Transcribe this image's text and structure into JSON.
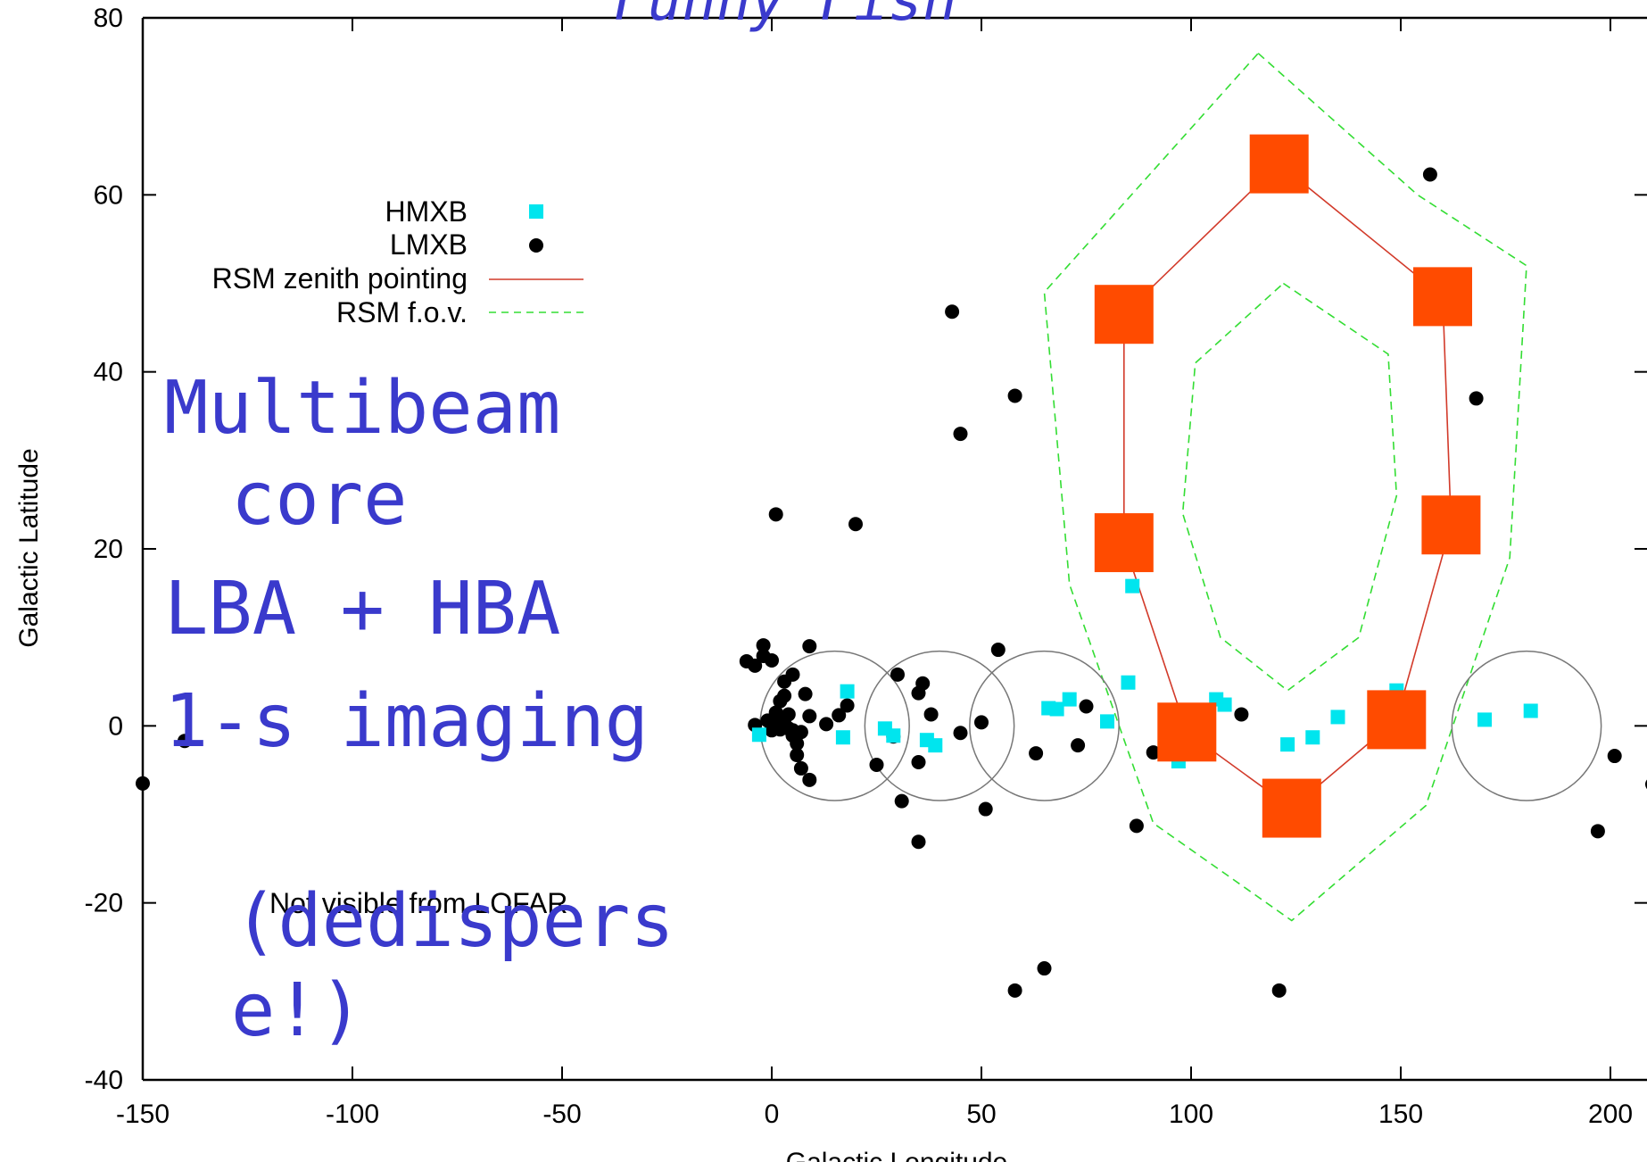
{
  "chart_data": {
    "type": "scatter",
    "title": "Funny Fish",
    "xlabel": "Galactic Longitude",
    "ylabel": "Galactic Latitude",
    "xlim": [
      -150,
      210
    ],
    "ylim": [
      -40,
      80
    ],
    "x_ticks": [
      -150,
      -100,
      -50,
      0,
      50,
      100,
      150,
      200
    ],
    "y_ticks": [
      -40,
      -20,
      0,
      20,
      40,
      60,
      80
    ],
    "grid": false,
    "legend_position": "top-left",
    "annotation": "Not visible from LOFAR",
    "series": [
      {
        "name": "HMXB",
        "color": "#00e5ee",
        "marker": "square",
        "points": [
          [
            -3,
            -1
          ],
          [
            17,
            -1.3
          ],
          [
            18,
            3.9
          ],
          [
            27,
            -0.3
          ],
          [
            29,
            -1.1
          ],
          [
            37,
            -1.6
          ],
          [
            39,
            -2.2
          ],
          [
            66,
            2
          ],
          [
            68,
            1.9
          ],
          [
            71,
            3
          ],
          [
            80,
            0.5
          ],
          [
            85,
            4.9
          ],
          [
            86,
            15.8
          ],
          [
            97,
            -4
          ],
          [
            106,
            3
          ],
          [
            108,
            2.4
          ],
          [
            123,
            -2.1
          ],
          [
            129,
            -1.3
          ],
          [
            135,
            1
          ],
          [
            149,
            4
          ],
          [
            170,
            0.7
          ],
          [
            181,
            1.7
          ]
        ]
      },
      {
        "name": "LMXB",
        "color": "#000000",
        "marker": "circle",
        "points": [
          [
            -150,
            -6.5
          ],
          [
            -140,
            -1.7
          ],
          [
            -6,
            7.3
          ],
          [
            -4,
            6.8
          ],
          [
            -2,
            7.9
          ],
          [
            -2,
            9.1
          ],
          [
            0,
            7.4
          ],
          [
            -4,
            0.1
          ],
          [
            -1,
            0.6
          ],
          [
            0,
            0
          ],
          [
            0,
            -0.5
          ],
          [
            1,
            0.8
          ],
          [
            1,
            1.5
          ],
          [
            2,
            2.8
          ],
          [
            2,
            -0.4
          ],
          [
            3,
            3.4
          ],
          [
            3,
            0.3
          ],
          [
            3,
            5
          ],
          [
            4,
            -0.3
          ],
          [
            1,
            23.9
          ],
          [
            4,
            -0.3
          ],
          [
            4,
            1.3
          ],
          [
            5,
            -0.5
          ],
          [
            5,
            -1.1
          ],
          [
            7,
            -0.7
          ],
          [
            6,
            -2
          ],
          [
            5,
            5.8
          ],
          [
            6,
            -3.3
          ],
          [
            7,
            -4.8
          ],
          [
            8,
            3.6
          ],
          [
            9,
            9
          ],
          [
            9,
            1.1
          ],
          [
            9,
            -6.1
          ],
          [
            13,
            0.2
          ],
          [
            16,
            1.2
          ],
          [
            18,
            2.3
          ],
          [
            20,
            22.8
          ],
          [
            25,
            -4.4
          ],
          [
            30,
            5.8
          ],
          [
            29,
            -1.2
          ],
          [
            31,
            -8.5
          ],
          [
            35,
            3.7
          ],
          [
            36,
            4.8
          ],
          [
            35,
            -4.1
          ],
          [
            35,
            -13.1
          ],
          [
            38,
            1.3
          ],
          [
            45,
            -0.8
          ],
          [
            43,
            46.8
          ],
          [
            45,
            33
          ],
          [
            50,
            0.4
          ],
          [
            51,
            -9.4
          ],
          [
            54,
            8.6
          ],
          [
            58,
            37.3
          ],
          [
            58,
            -29.9
          ],
          [
            63,
            -3.1
          ],
          [
            65,
            -27.4
          ],
          [
            73,
            -2.2
          ],
          [
            75,
            2.2
          ],
          [
            87,
            -11.3
          ],
          [
            91,
            -3
          ],
          [
            112,
            1.3
          ],
          [
            121,
            -29.9
          ],
          [
            157,
            62.3
          ],
          [
            168,
            37
          ],
          [
            197,
            -11.9
          ],
          [
            201,
            -3.4
          ],
          [
            210,
            -6.6
          ]
        ]
      },
      {
        "name": "RSM zenith pointing",
        "color": "#d23a2a",
        "marker": "big-square",
        "marker_color": "#ff4b00",
        "closed": true,
        "points": [
          [
            121,
            63.5
          ],
          [
            160,
            48.5
          ],
          [
            162,
            22.7
          ],
          [
            149,
            0.7
          ],
          [
            124,
            -9.3
          ],
          [
            99,
            -0.7
          ],
          [
            84,
            20.7
          ],
          [
            84,
            46.5
          ]
        ]
      },
      {
        "name": "RSM f.o.v.",
        "color": "#33dd33",
        "dashed": true,
        "outer": [
          [
            116,
            76
          ],
          [
            154,
            60
          ],
          [
            180,
            52
          ],
          [
            176,
            19
          ],
          [
            156,
            -9
          ],
          [
            124,
            -22
          ],
          [
            91,
            -11
          ],
          [
            71,
            16
          ],
          [
            65,
            49
          ]
        ],
        "inner": [
          [
            122,
            50
          ],
          [
            147,
            42
          ],
          [
            149,
            26
          ],
          [
            140,
            10
          ],
          [
            123,
            4
          ],
          [
            107,
            10
          ],
          [
            98,
            24
          ],
          [
            101,
            41
          ]
        ]
      }
    ],
    "circles": [
      {
        "cx": 15,
        "cy": 0,
        "r": 17.8,
        "color": "#777777"
      },
      {
        "cx": 40,
        "cy": 0,
        "r": 17.8,
        "color": "#777777"
      },
      {
        "cx": 65,
        "cy": 0,
        "r": 17.8,
        "color": "#777777"
      },
      {
        "cx": 180,
        "cy": 0,
        "r": 17.8,
        "color": "#777777"
      }
    ]
  },
  "overlay_text": {
    "lines": [
      "Multibeam",
      "core",
      "LBA + HBA",
      "1-s imaging"
    ],
    "dedisperse": [
      "(dedispers",
      "e!)"
    ]
  }
}
